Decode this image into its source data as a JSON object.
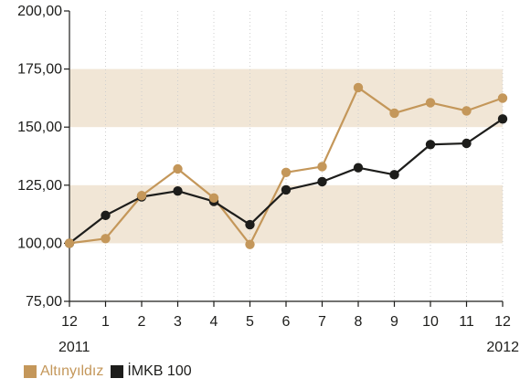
{
  "chart_data": {
    "type": "line",
    "ylim": [
      75,
      200
    ],
    "y_ticks": [
      "75,00",
      "100,00",
      "125,00",
      "150,00",
      "175,00",
      "200,00"
    ],
    "y_tick_values": [
      75,
      100,
      125,
      150,
      175,
      200
    ],
    "bands": [
      [
        100,
        125
      ],
      [
        150,
        175
      ]
    ],
    "band_color": "#f1e6d6",
    "categories": [
      "12",
      "1",
      "2",
      "3",
      "4",
      "5",
      "6",
      "7",
      "8",
      "9",
      "10",
      "11",
      "12"
    ],
    "year_labels": [
      {
        "index": 0,
        "label": "2011"
      },
      {
        "index": 12,
        "label": "2012"
      }
    ],
    "series": [
      {
        "name": "Altınyıldız",
        "color": "#c4975a",
        "values": [
          100,
          102,
          120.5,
          132,
          119.5,
          99.5,
          130.5,
          133,
          167,
          156,
          160.5,
          157,
          162.5
        ]
      },
      {
        "name": "İMKB 100",
        "color": "#1d1d1b",
        "values": [
          100,
          112,
          120,
          122.5,
          118,
          108,
          123,
          126.5,
          132.5,
          129.5,
          142.5,
          143,
          153.5
        ]
      }
    ]
  }
}
